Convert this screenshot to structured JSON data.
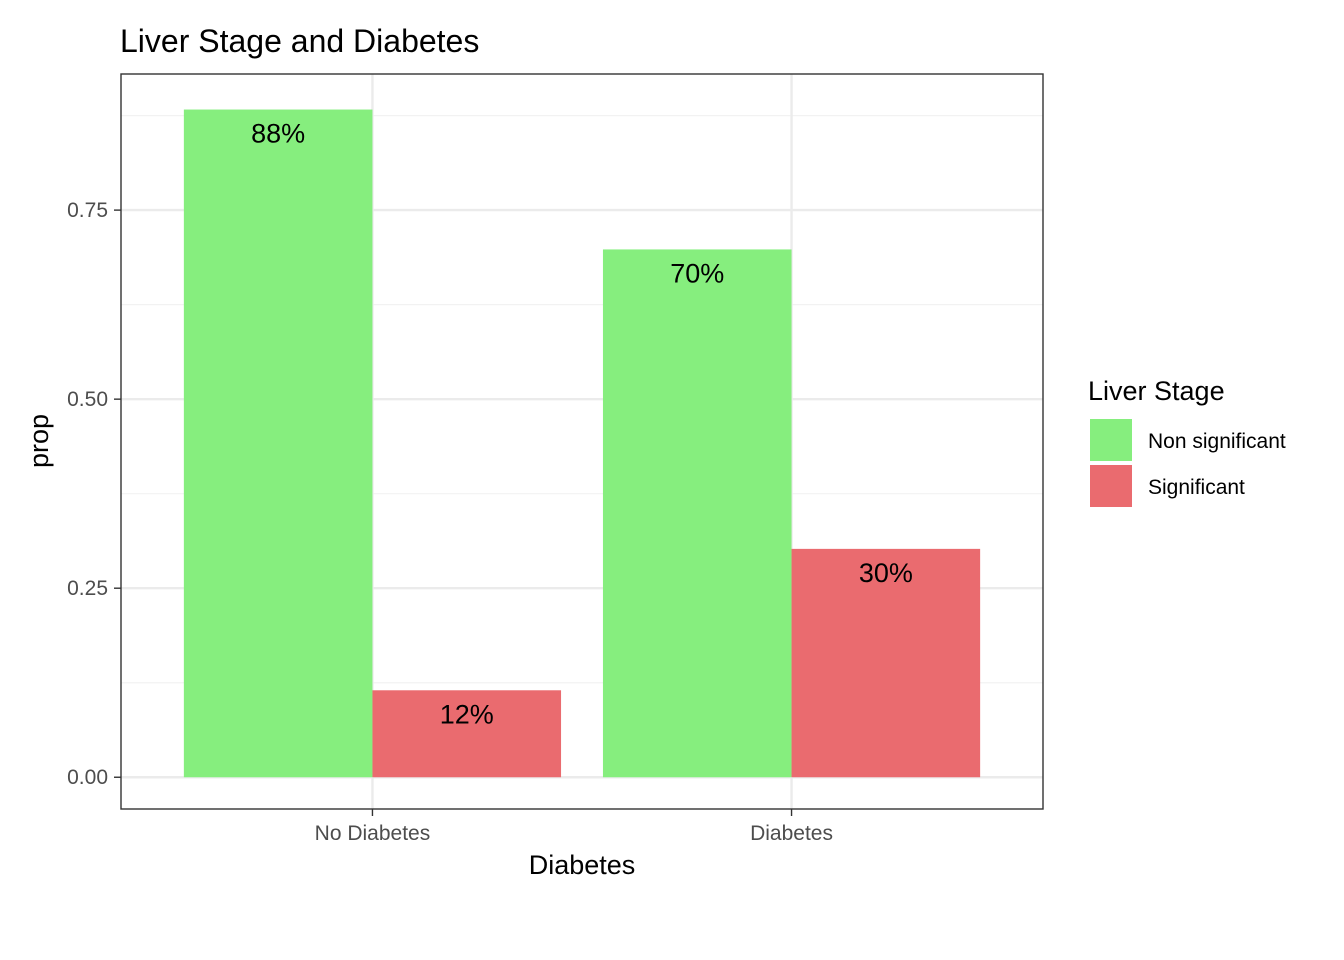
{
  "chart_data": {
    "type": "bar",
    "title": "Liver Stage and Diabetes",
    "xlabel": "Diabetes",
    "ylabel": "prop",
    "categories": [
      "No Diabetes",
      "Diabetes"
    ],
    "series": [
      {
        "name": "Non significant",
        "values": [
          0.883,
          0.698
        ],
        "labels": [
          "88%",
          "70%"
        ],
        "color": "#86ee7e"
      },
      {
        "name": "Significant",
        "values": [
          0.115,
          0.302
        ],
        "labels": [
          "12%",
          "30%"
        ],
        "color": "#ea6b6f"
      }
    ],
    "ylim": [
      -0.042,
      0.93
    ],
    "yticks": [
      0,
      0.25,
      0.5,
      0.75
    ],
    "ytick_labels": [
      "0.00",
      "0.25",
      "0.50",
      "0.75"
    ],
    "legend_title": "Liver Stage",
    "legend_position": "right",
    "grid": true,
    "theme": "bw"
  }
}
